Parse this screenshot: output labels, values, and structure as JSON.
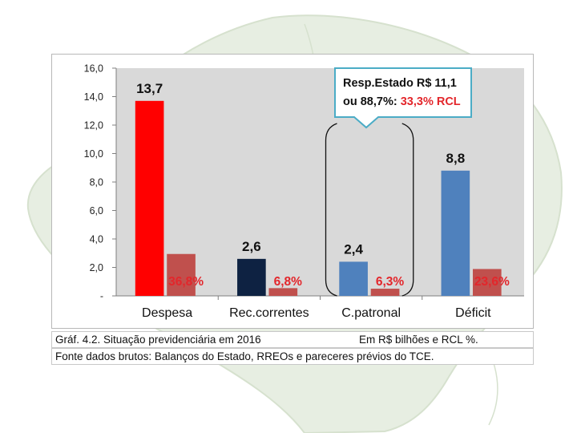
{
  "chart_data": {
    "type": "bar",
    "categories": [
      "Despesa",
      "Rec.correntes",
      "C.patronal",
      "Déficit"
    ],
    "series": [
      {
        "values": [
          13.7,
          2.6,
          2.4,
          8.8
        ],
        "value_labels": [
          "13,7",
          "2,6",
          "2,4",
          "8,8"
        ]
      },
      {
        "values": [
          0.368,
          0.068,
          0.063,
          0.236
        ],
        "value_labels": [
          "36,8%",
          "6,8%",
          "6,3%",
          "23,6%"
        ]
      }
    ],
    "ylim": [
      0,
      16
    ],
    "yticks": [
      "-",
      "2,0",
      "4,0",
      "6,0",
      "8,0",
      "10,0",
      "12,0",
      "14,0",
      "16,0"
    ],
    "grid": false,
    "colors": {
      "bar_colors": [
        "#ff0000",
        "#0e2242",
        "#4f81bd",
        "#4f81bd"
      ],
      "pct_bar": "#c0504d",
      "pct_label": "#e3262b",
      "plot_bg": "#d9d9d9",
      "callout_border": "#4bacc6",
      "callout_red": "#e3262b"
    },
    "annotation": {
      "line1": "Resp.Estado R$ 11,1",
      "line2_prefix": "ou 88,7%: ",
      "line2_highlight": "33,3%  RCL"
    }
  },
  "caption": {
    "line1": "Gráf. 4.2. Situação previdenciária em 2016",
    "units": "Em R$ bilhões e RCL %.",
    "line2": "Fonte dados brutos: Balanços do Estado, RREOs e pareceres prévios do TCE."
  }
}
